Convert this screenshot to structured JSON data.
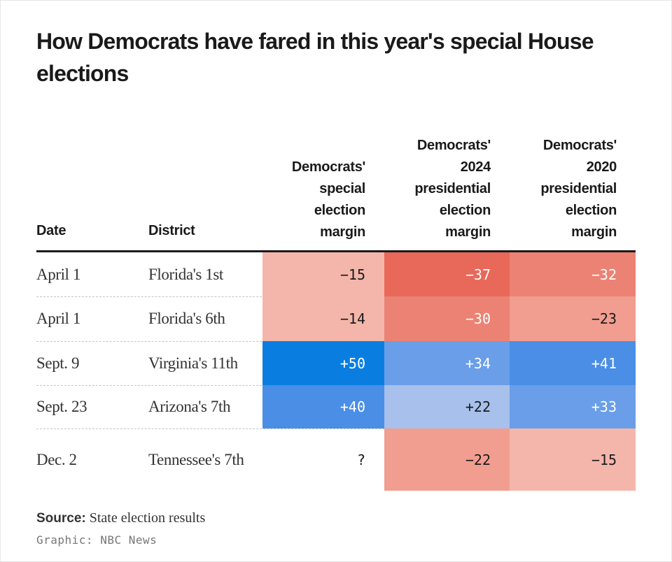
{
  "chart_data": {
    "type": "table",
    "title": "How Democrats have fared in this year's special House elections",
    "columns": [
      {
        "key": "date",
        "label": "Date"
      },
      {
        "key": "district",
        "label": "District"
      },
      {
        "key": "special",
        "label": "Democrats' special election margin"
      },
      {
        "key": "pres2024",
        "label": "Democrats' 2024 presidential election margin"
      },
      {
        "key": "pres2020",
        "label": "Democrats' 2020 presidential election margin"
      }
    ],
    "header_lines": {
      "date": [
        "Date"
      ],
      "district": [
        "District"
      ],
      "special": [
        "Democrats'",
        "special",
        "election",
        "margin"
      ],
      "pres2024": [
        "Democrats'",
        "2024",
        "presidential",
        "election",
        "margin"
      ],
      "pres2020": [
        "Democrats'",
        "2020",
        "presidential",
        "election",
        "margin"
      ]
    },
    "rows": [
      {
        "date": "April 1",
        "district": "Florida's 1st",
        "special": "−15",
        "pres2024": "−37",
        "pres2020": "−32"
      },
      {
        "date": "April 1",
        "district": "Florida's 6th",
        "special": "−14",
        "pres2024": "−30",
        "pres2020": "−23"
      },
      {
        "date": "Sept. 9",
        "district": "Virginia's 11th",
        "special": "+50",
        "pres2024": "+34",
        "pres2020": "+41"
      },
      {
        "date": "Sept. 23",
        "district": "Arizona's 7th",
        "special": "+40",
        "pres2024": "+22",
        "pres2020": "+33"
      },
      {
        "date": "Dec. 2",
        "district": "Tennessee's 7th",
        "special": "?",
        "pres2024": "−22",
        "pres2020": "−15"
      }
    ],
    "values_numeric": [
      [
        -15,
        -37,
        -32
      ],
      [
        -14,
        -30,
        -23
      ],
      [
        50,
        34,
        41
      ],
      [
        40,
        22,
        33
      ],
      [
        null,
        -22,
        -15
      ]
    ]
  },
  "colors": {
    "red_strong": "#e8685a",
    "red_mid": "#ec8273",
    "red_light": "#f19d90",
    "red_pale": "#f4b6ab",
    "blue_strong": "#0a7ee0",
    "blue_mid": "#4a8ee6",
    "blue_soft": "#6a9ee8",
    "blue_pale": "#a7c0ec"
  },
  "source": {
    "label": "Source:",
    "text": "State election results"
  },
  "credit": "Graphic: NBC News"
}
